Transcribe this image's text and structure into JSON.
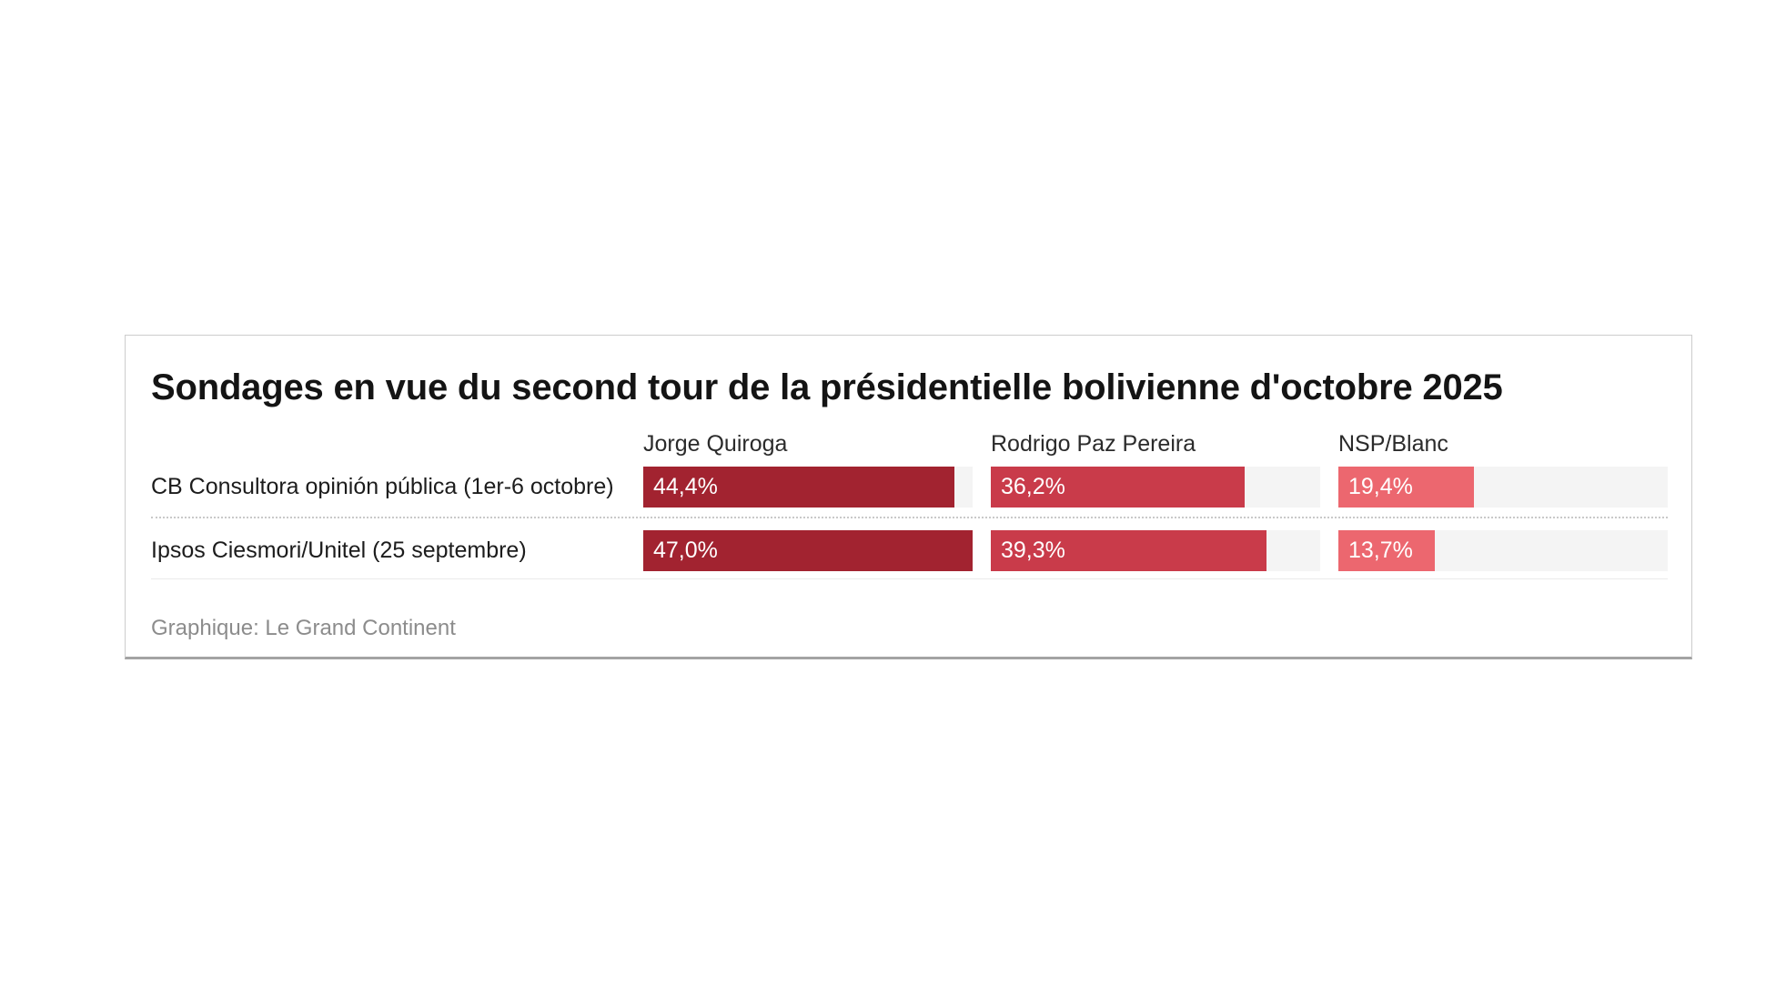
{
  "page": {
    "background": "#ffffff"
  },
  "card": {
    "background": "#ffffff",
    "border_color": "#cccccc",
    "bottom_border_color": "#a3a3a3"
  },
  "chart_data": {
    "type": "bar",
    "orientation": "horizontal",
    "title": "Sondages en vue du second tour de la présidentielle bolivienne d'octobre 2025",
    "categories": [
      "CB Consultora opinión pública (1er-6 octobre)",
      "Ipsos Ciesmori/Unitel (25 septembre)"
    ],
    "series": [
      {
        "name": "Jorge Quiroga",
        "color": "#a22330",
        "values": [
          44.4,
          47.0
        ],
        "value_labels": [
          "44,4%",
          "47,0%"
        ]
      },
      {
        "name": "Rodrigo Paz Pereira",
        "color": "#c93b4a",
        "values": [
          36.2,
          39.3
        ],
        "value_labels": [
          "36,2%",
          "39,3%"
        ]
      },
      {
        "name": "NSP/Blanc",
        "color": "#ec676f",
        "values": [
          19.4,
          13.7
        ],
        "value_labels": [
          "19,4%",
          "13,7%"
        ]
      }
    ],
    "xlim": [
      0,
      47
    ],
    "grid": false,
    "track_color": "#f4f4f4",
    "value_label_color": "#ffffff",
    "legend_position": "column-headers",
    "source": "Graphique: Le Grand Continent"
  }
}
